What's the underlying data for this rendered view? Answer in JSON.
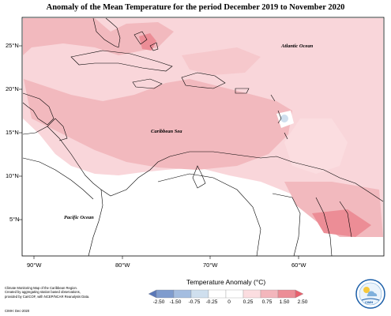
{
  "title": "Anomaly of the Mean Temperature for the period December 2019 to November 2020",
  "lat_labels": [
    "25°N",
    "20°N",
    "15°N",
    "10°N",
    "5°N"
  ],
  "lon_labels": [
    "90°W",
    "80°W",
    "70°W",
    "60°W"
  ],
  "places": {
    "atlantic": "Atlantic Ocean",
    "caribbean": "Caribbean Sea",
    "pacific": "Pacific Ocean"
  },
  "legend": {
    "title": "Temperature Anomaly (°C)",
    "ticks": [
      "-2.50",
      "-1.50",
      "-0.75",
      "-0.25",
      "0",
      "0.25",
      "0.75",
      "1.50",
      "2.50"
    ],
    "colors": [
      "#5a78b8",
      "#7f9cce",
      "#a4bde0",
      "#cfdfee",
      "#ffffff",
      "#fbdde0",
      "#f3b6bc",
      "#ec8d96",
      "#e8616e"
    ]
  },
  "credit": {
    "line1": "Climate Monitoring Map of the Caribbean Region.",
    "line2": "Created by aggregating station based observations,",
    "line3": "provided by CariCOF, with NCEP/NCAR Reanalysis Data.",
    "stamp": "CIMH: Dec-2020"
  },
  "logo_text": "CIMH"
}
